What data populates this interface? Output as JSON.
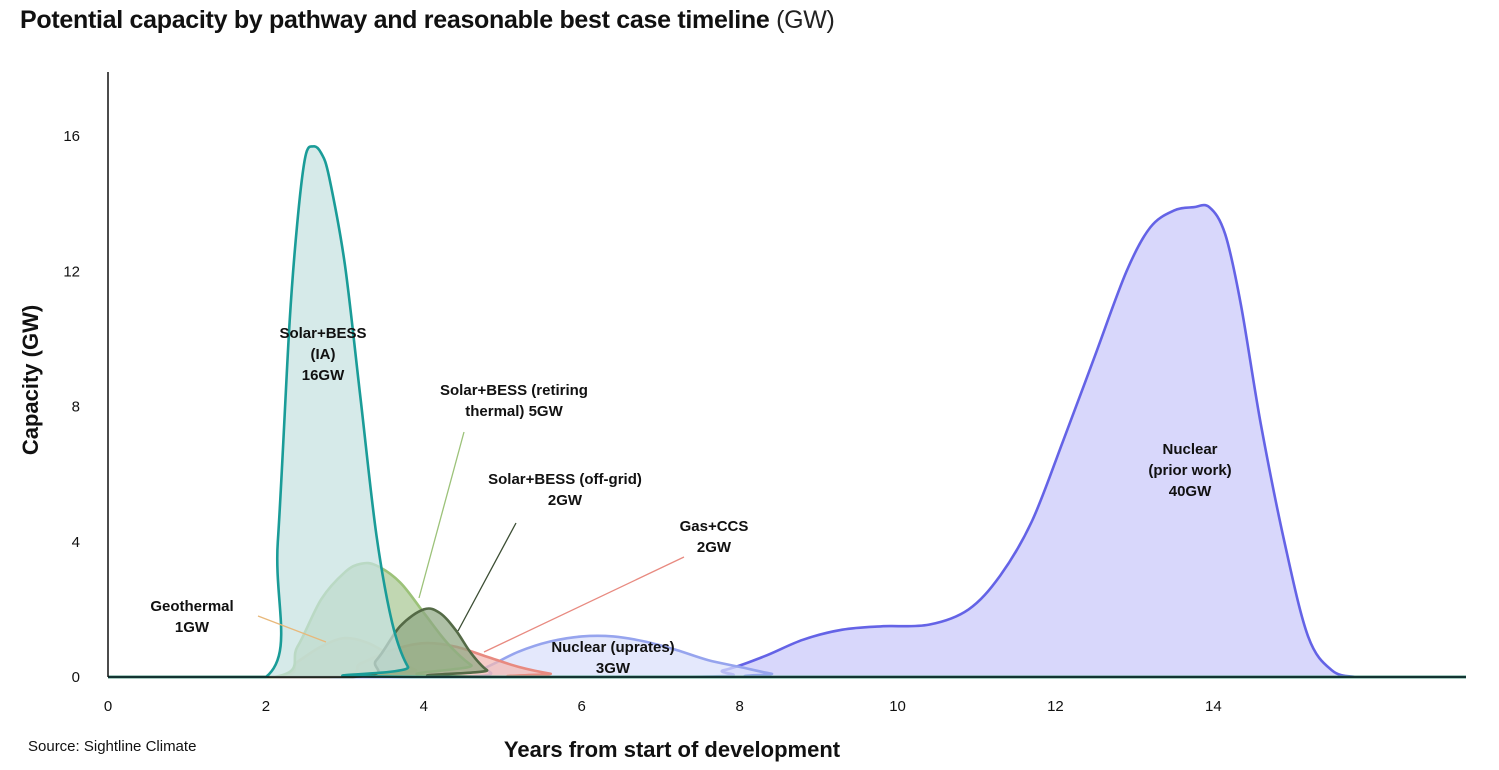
{
  "header": {
    "title_bold": "Potential capacity by pathway and reasonable best case timeline",
    "title_unit": "(GW)"
  },
  "footer": {
    "source": "Source: Sightline Climate"
  },
  "chart_data": {
    "type": "area",
    "title": "Potential capacity by pathway and reasonable best case timeline (GW)",
    "xlabel": "Years from start of development",
    "ylabel": "Capacity (GW)",
    "xlim": [
      0,
      17.2
    ],
    "ylim": [
      0,
      17.9
    ],
    "x_ticks": [
      0,
      2,
      4,
      6,
      8,
      10,
      12,
      14
    ],
    "y_ticks": [
      0,
      4,
      8,
      12,
      16
    ],
    "grid": false,
    "legend": "none (series labeled directly on chart)",
    "series": [
      {
        "name": "Nuclear (prior work) 40GW",
        "color": "#6463e6",
        "fill": "#c9c8fa",
        "x": [
          0,
          7.2,
          7.8,
          8.3,
          8.8,
          9.3,
          9.8,
          10.4,
          10.9,
          11.3,
          11.7,
          12.1,
          12.5,
          12.9,
          13.2,
          13.5,
          13.75,
          13.95,
          14.15,
          14.35,
          14.6,
          14.9,
          15.2,
          15.5,
          15.8,
          16.0,
          17.2
        ],
        "y": [
          0,
          0,
          0.2,
          0.6,
          1.1,
          1.4,
          1.5,
          1.55,
          2.0,
          3.0,
          4.6,
          7.0,
          9.5,
          12.0,
          13.3,
          13.8,
          13.9,
          13.9,
          13.1,
          11.0,
          7.5,
          4.0,
          1.2,
          0.2,
          0,
          0,
          0
        ]
      },
      {
        "name": "Nuclear (uprates) 3GW",
        "color": "#96a4ee",
        "fill": "#d9dffb",
        "x": [
          0,
          4.4,
          4.8,
          5.2,
          5.6,
          6.0,
          6.4,
          6.8,
          7.2,
          7.6,
          8.0,
          8.4,
          8.8,
          17.2
        ],
        "y": [
          0,
          0,
          0.3,
          0.75,
          1.05,
          1.2,
          1.2,
          1.05,
          0.8,
          0.5,
          0.3,
          0.1,
          0,
          0
        ]
      },
      {
        "name": "Gas+CCS 2GW",
        "color": "#e88a80",
        "fill": "#f2b9b3",
        "x": [
          0,
          2.8,
          3.2,
          3.6,
          4.0,
          4.4,
          4.8,
          5.2,
          5.6,
          6.0,
          17.2
        ],
        "y": [
          0,
          0,
          0.4,
          0.8,
          1.0,
          0.9,
          0.6,
          0.3,
          0.1,
          0,
          0
        ]
      },
      {
        "name": "Geothermal 1GW",
        "color": "#e1bf9e",
        "fill": "#e8d3b9",
        "x": [
          0,
          2.1,
          2.4,
          2.7,
          3.0,
          3.3,
          3.6,
          3.9,
          4.2,
          17.2
        ],
        "y": [
          0,
          0,
          0.45,
          0.9,
          1.15,
          1.0,
          0.6,
          0.2,
          0,
          0
        ]
      },
      {
        "name": "Solar+BESS (retiring thermal) 5GW",
        "color": "#9cc279",
        "fill": "#a9c894",
        "x": [
          0,
          2.1,
          2.4,
          2.7,
          3.0,
          3.2,
          3.4,
          3.7,
          4.0,
          4.3,
          4.6,
          4.9,
          17.2
        ],
        "y": [
          0,
          0,
          0.9,
          2.3,
          3.1,
          3.35,
          3.3,
          2.8,
          1.9,
          1.0,
          0.35,
          0,
          0
        ]
      },
      {
        "name": "Solar+BESS (off-grid) 2GW",
        "color": "#546a46",
        "fill": "#8fa883",
        "x": [
          0,
          3.1,
          3.4,
          3.7,
          4.0,
          4.2,
          4.4,
          4.6,
          4.8,
          5.0,
          17.2
        ],
        "y": [
          0,
          0,
          0.5,
          1.5,
          2.0,
          1.9,
          1.4,
          0.7,
          0.2,
          0,
          0
        ]
      },
      {
        "name": "Solar+BESS (IA) 16GW",
        "color": "#1a9c98",
        "fill": "#c6e2e1",
        "x": [
          0,
          2.0,
          2.15,
          2.3,
          2.4,
          2.5,
          2.6,
          2.7,
          2.8,
          3.0,
          3.2,
          3.4,
          3.6,
          3.8,
          4.0,
          17.2
        ],
        "y": [
          0,
          0,
          4.0,
          10.5,
          13.5,
          15.4,
          15.7,
          15.5,
          14.8,
          12.2,
          8.2,
          4.2,
          1.6,
          0.3,
          0,
          0
        ]
      }
    ],
    "annotations": [
      {
        "lines": [
          "Solar+BESS",
          "(IA)",
          "16GW"
        ]
      },
      {
        "lines": [
          "Solar+BESS (retiring",
          "thermal) 5GW"
        ]
      },
      {
        "lines": [
          "Solar+BESS (off-grid)",
          "2GW"
        ]
      },
      {
        "lines": [
          "Gas+CCS",
          "2GW"
        ]
      },
      {
        "lines": [
          "Geothermal",
          "1GW"
        ]
      },
      {
        "lines": [
          "Nuclear (uprates)",
          "3GW"
        ]
      },
      {
        "lines": [
          "Nuclear",
          "(prior work)",
          "40GW"
        ]
      }
    ]
  }
}
